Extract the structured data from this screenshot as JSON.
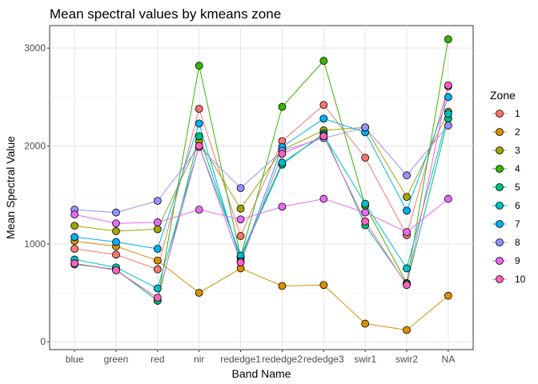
{
  "chart_data": {
    "type": "line",
    "title": "Mean spectral values by kmeans zone",
    "xlabel": "Band Name",
    "ylabel": "Mean Spectral Value",
    "categories": [
      "blue",
      "green",
      "red",
      "nir",
      "rededge1",
      "rededge2",
      "rededge3",
      "swir1",
      "swir2",
      "NA"
    ],
    "ylim": [
      -80,
      3230
    ],
    "yticks": [
      0,
      1000,
      2000,
      3000
    ],
    "ytick_labels": [
      "0",
      "1000",
      "2000",
      "3000"
    ],
    "grid": true,
    "legend": {
      "title": "Zone",
      "position": "right"
    },
    "series": [
      {
        "name": "1",
        "color": "#F8766D",
        "values": [
          950,
          890,
          740,
          2380,
          1080,
          2050,
          2420,
          1880,
          1090,
          2610
        ]
      },
      {
        "name": "2",
        "color": "#D89000",
        "values": [
          1030,
          975,
          830,
          500,
          750,
          570,
          580,
          185,
          120,
          470
        ]
      },
      {
        "name": "3",
        "color": "#A3A500",
        "values": [
          1185,
          1130,
          1150,
          2050,
          1360,
          1960,
          2160,
          2190,
          1480,
          2350
        ]
      },
      {
        "name": "4",
        "color": "#39B600",
        "values": [
          800,
          735,
          420,
          2820,
          870,
          2400,
          2870,
          1390,
          600,
          3090
        ]
      },
      {
        "name": "5",
        "color": "#00BF7D",
        "values": [
          790,
          740,
          420,
          2100,
          860,
          1810,
          2130,
          1190,
          590,
          2280
        ]
      },
      {
        "name": "6",
        "color": "#00BFC4",
        "values": [
          840,
          760,
          545,
          2000,
          880,
          1830,
          2110,
          1410,
          750,
          2330
        ]
      },
      {
        "name": "7",
        "color": "#00B0F6",
        "values": [
          1070,
          1020,
          950,
          2230,
          820,
          1990,
          2280,
          2140,
          1340,
          2500
        ]
      },
      {
        "name": "8",
        "color": "#9590FF",
        "values": [
          1350,
          1320,
          1440,
          1990,
          1570,
          1950,
          2080,
          2190,
          1700,
          2210
        ]
      },
      {
        "name": "9",
        "color": "#E76BF3",
        "values": [
          1300,
          1210,
          1220,
          1350,
          1250,
          1380,
          1460,
          1320,
          1120,
          1460
        ]
      },
      {
        "name": "10",
        "color": "#FF62BC",
        "values": [
          800,
          730,
          450,
          2000,
          810,
          1920,
          2100,
          1230,
          580,
          2620
        ]
      }
    ]
  }
}
